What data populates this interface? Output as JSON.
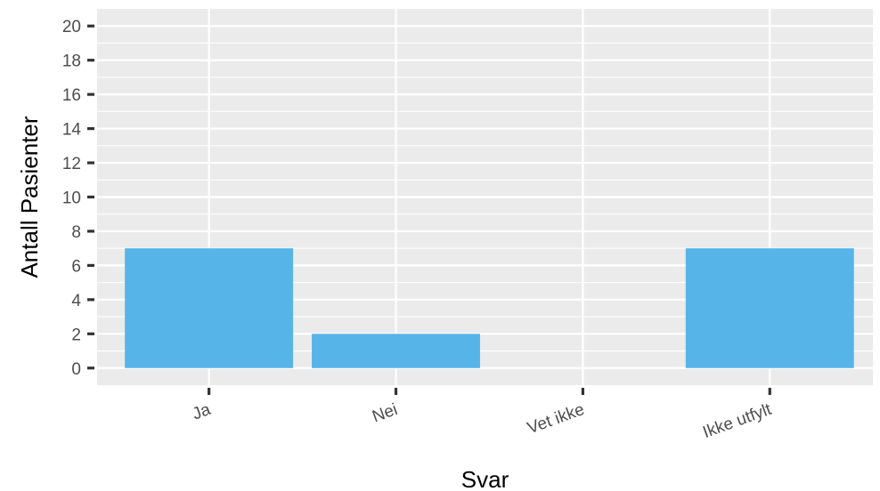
{
  "chart_data": {
    "type": "bar",
    "categories": [
      "Ja",
      "Nei",
      "Vet ikke",
      "Ikke utfylt"
    ],
    "values": [
      7,
      2,
      0,
      7
    ],
    "xlabel": "Svar",
    "ylabel": "Antall Pasienter",
    "ylim": [
      -1,
      21
    ],
    "yticks": [
      0,
      2,
      4,
      6,
      8,
      10,
      12,
      14,
      16,
      18,
      20
    ],
    "grid": true,
    "legend": "none",
    "colors": {
      "bar": "#56B4E9",
      "panel": "#EBEBEB",
      "gridline": "#FFFFFF",
      "tick": "#333333",
      "tick_label": "#4D4D4D"
    }
  }
}
